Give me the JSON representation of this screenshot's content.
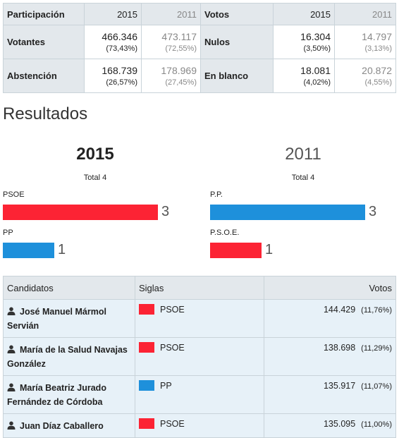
{
  "colors": {
    "psoe": "#fc2334",
    "pp": "#1e90db"
  },
  "participation": {
    "header": {
      "label": "Participación",
      "y2015": "2015",
      "y2011": "2011",
      "label2": "Votos",
      "y2015b": "2015",
      "y2011b": "2011"
    },
    "votantes": {
      "label": "Votantes",
      "v2015": "466.346",
      "p2015": "(73,43%)",
      "v2011": "473.117",
      "p2011": "(72,55%)"
    },
    "nulos": {
      "label": "Nulos",
      "v2015": "16.304",
      "p2015": "(3,50%)",
      "v2011": "14.797",
      "p2011": "(3,13%)"
    },
    "abstencion": {
      "label": "Abstención",
      "v2015": "168.739",
      "p2015": "(26,57%)",
      "v2011": "178.969",
      "p2011": "(27,45%)"
    },
    "blanco": {
      "label": "En blanco",
      "v2015": "18.081",
      "p2015": "(4,02%)",
      "v2011": "20.872",
      "p2011": "(4,55%)"
    }
  },
  "results_title": "Resultados",
  "chart_data": [
    {
      "type": "bar",
      "title": "2015",
      "subtitle": "Total 4",
      "categories": [
        "PSOE",
        "PP"
      ],
      "values": [
        3,
        1
      ],
      "colors": [
        "#fc2334",
        "#1e90db"
      ],
      "xlim": [
        0,
        3
      ]
    },
    {
      "type": "bar",
      "title": "2011",
      "subtitle": "Total 4",
      "categories": [
        "P.P.",
        "P.S.O.E."
      ],
      "values": [
        3,
        1
      ],
      "colors": [
        "#1e90db",
        "#fc2334"
      ],
      "xlim": [
        0,
        3
      ]
    }
  ],
  "candidates": {
    "headers": {
      "name": "Candidatos",
      "party": "Siglas",
      "votes": "Votos"
    },
    "rows": [
      {
        "name": "José Manuel Mármol Servián",
        "party": "PSOE",
        "color": "#fc2334",
        "votes": "144.429",
        "pct": "(11,76%)"
      },
      {
        "name": "María de la Salud Navajas González",
        "party": "PSOE",
        "color": "#fc2334",
        "votes": "138.698",
        "pct": "(11,29%)"
      },
      {
        "name": "María Beatriz Jurado Fernández de Córdoba",
        "party": "PP",
        "color": "#1e90db",
        "votes": "135.917",
        "pct": "(11,07%)"
      },
      {
        "name": "Juan Díaz Caballero",
        "party": "PSOE",
        "color": "#fc2334",
        "votes": "135.095",
        "pct": "(11,00%)"
      }
    ]
  }
}
